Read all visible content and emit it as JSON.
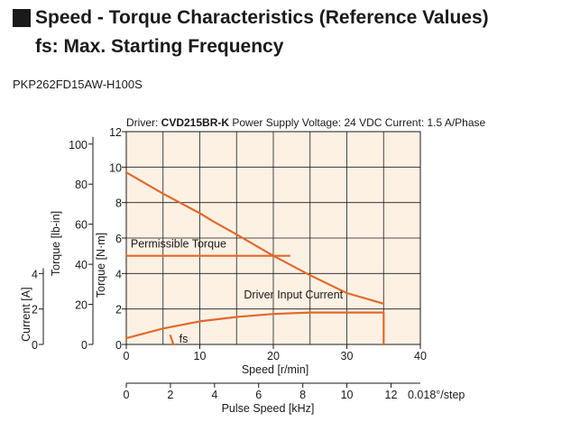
{
  "header": {
    "title": "Speed - Torque Characteristics (Reference Values)",
    "subtitle": "fs: Max. Starting Frequency",
    "model": "PKP262FD15AW-H100S"
  },
  "chart_data": {
    "type": "line",
    "conditions": {
      "driver_label": "Driver:",
      "driver_name": "CVD215BR-K",
      "supply": "Power Supply Voltage: 24 VDC",
      "current": "Current: 1.5 A/Phase"
    },
    "xlabel": "Speed [r/min]",
    "xlim": [
      0,
      40
    ],
    "xticks": [
      "0",
      "10",
      "20",
      "30",
      "40"
    ],
    "x2label": "Pulse Speed [kHz]",
    "x2lim": [
      0,
      13.33
    ],
    "x2ticks": [
      "0",
      "2",
      "4",
      "6",
      "8",
      "10",
      "12"
    ],
    "x2_unit": "0.018°/step",
    "ylabel": "Torque [N·m]",
    "ylim": [
      0,
      12
    ],
    "yticks": [
      "0",
      "2",
      "4",
      "6",
      "8",
      "10",
      "12"
    ],
    "y2label": "Torque [lb-in]",
    "y2lim": [
      0,
      106.2
    ],
    "y2ticks": [
      "0",
      "20",
      "40",
      "60",
      "80",
      "100"
    ],
    "y3label": "Current [A]",
    "y3lim": [
      0,
      12
    ],
    "y3ticks": [
      "0",
      "2",
      "4"
    ],
    "grid": true,
    "series": [
      {
        "name": "",
        "x": [
          0,
          5,
          10,
          12,
          15,
          20,
          25,
          30,
          35
        ],
        "y": [
          9.7,
          8.5,
          7.4,
          6.9,
          6.2,
          5.0,
          3.9,
          2.9,
          2.3
        ]
      },
      {
        "name": "Permissible Torque",
        "x": [
          0,
          22.2
        ],
        "y": [
          5.0,
          5.0
        ]
      },
      {
        "name": "Driver Input Current",
        "x": [
          0,
          5,
          10,
          15,
          20,
          25,
          30,
          35,
          35
        ],
        "y": [
          0.35,
          0.9,
          1.3,
          1.55,
          1.72,
          1.8,
          1.8,
          1.8,
          0
        ]
      },
      {
        "name": "fs",
        "x": [
          6,
          6.4
        ],
        "y": [
          0.5,
          0
        ]
      }
    ],
    "annotations": [
      "Permissible Torque",
      "Driver Input Current",
      "fs"
    ],
    "colors": {
      "plot_bg": "#fdf1e4",
      "line": "#e3692a",
      "grid": "#1a1a1a"
    }
  }
}
